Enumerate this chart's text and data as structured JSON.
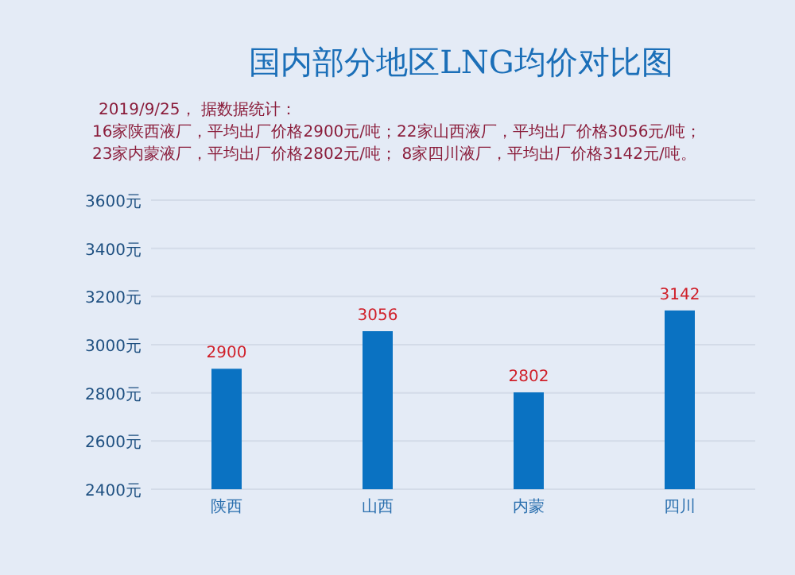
{
  "chart_data": {
    "type": "bar",
    "title": "国内部分地区LNG均价对比图",
    "annotations": [
      "2019/9/25， 据数据统计：",
      "16家陕西液厂，平均出厂价格2900元/吨；22家山西液厂，平均出厂价格3056元/吨；",
      "23家内蒙液厂，平均出厂价格2802元/吨； 8家四川液厂，平均出厂价格3142元/吨。"
    ],
    "categories": [
      "陕西",
      "山西",
      "内蒙",
      "四川"
    ],
    "values": [
      2900,
      3056,
      2802,
      3142
    ],
    "color": "#0a72c2",
    "ylim": [
      2400,
      3600
    ],
    "yticks": [
      {
        "value": 2400,
        "label": "2400元"
      },
      {
        "value": 2600,
        "label": "2600元"
      },
      {
        "value": 2800,
        "label": "2800元"
      },
      {
        "value": 3000,
        "label": "3000元"
      },
      {
        "value": 3200,
        "label": "3200元"
      },
      {
        "value": 3400,
        "label": "3400元"
      },
      {
        "value": 3600,
        "label": "3600元"
      }
    ],
    "grid": "y",
    "data_labels": true
  }
}
